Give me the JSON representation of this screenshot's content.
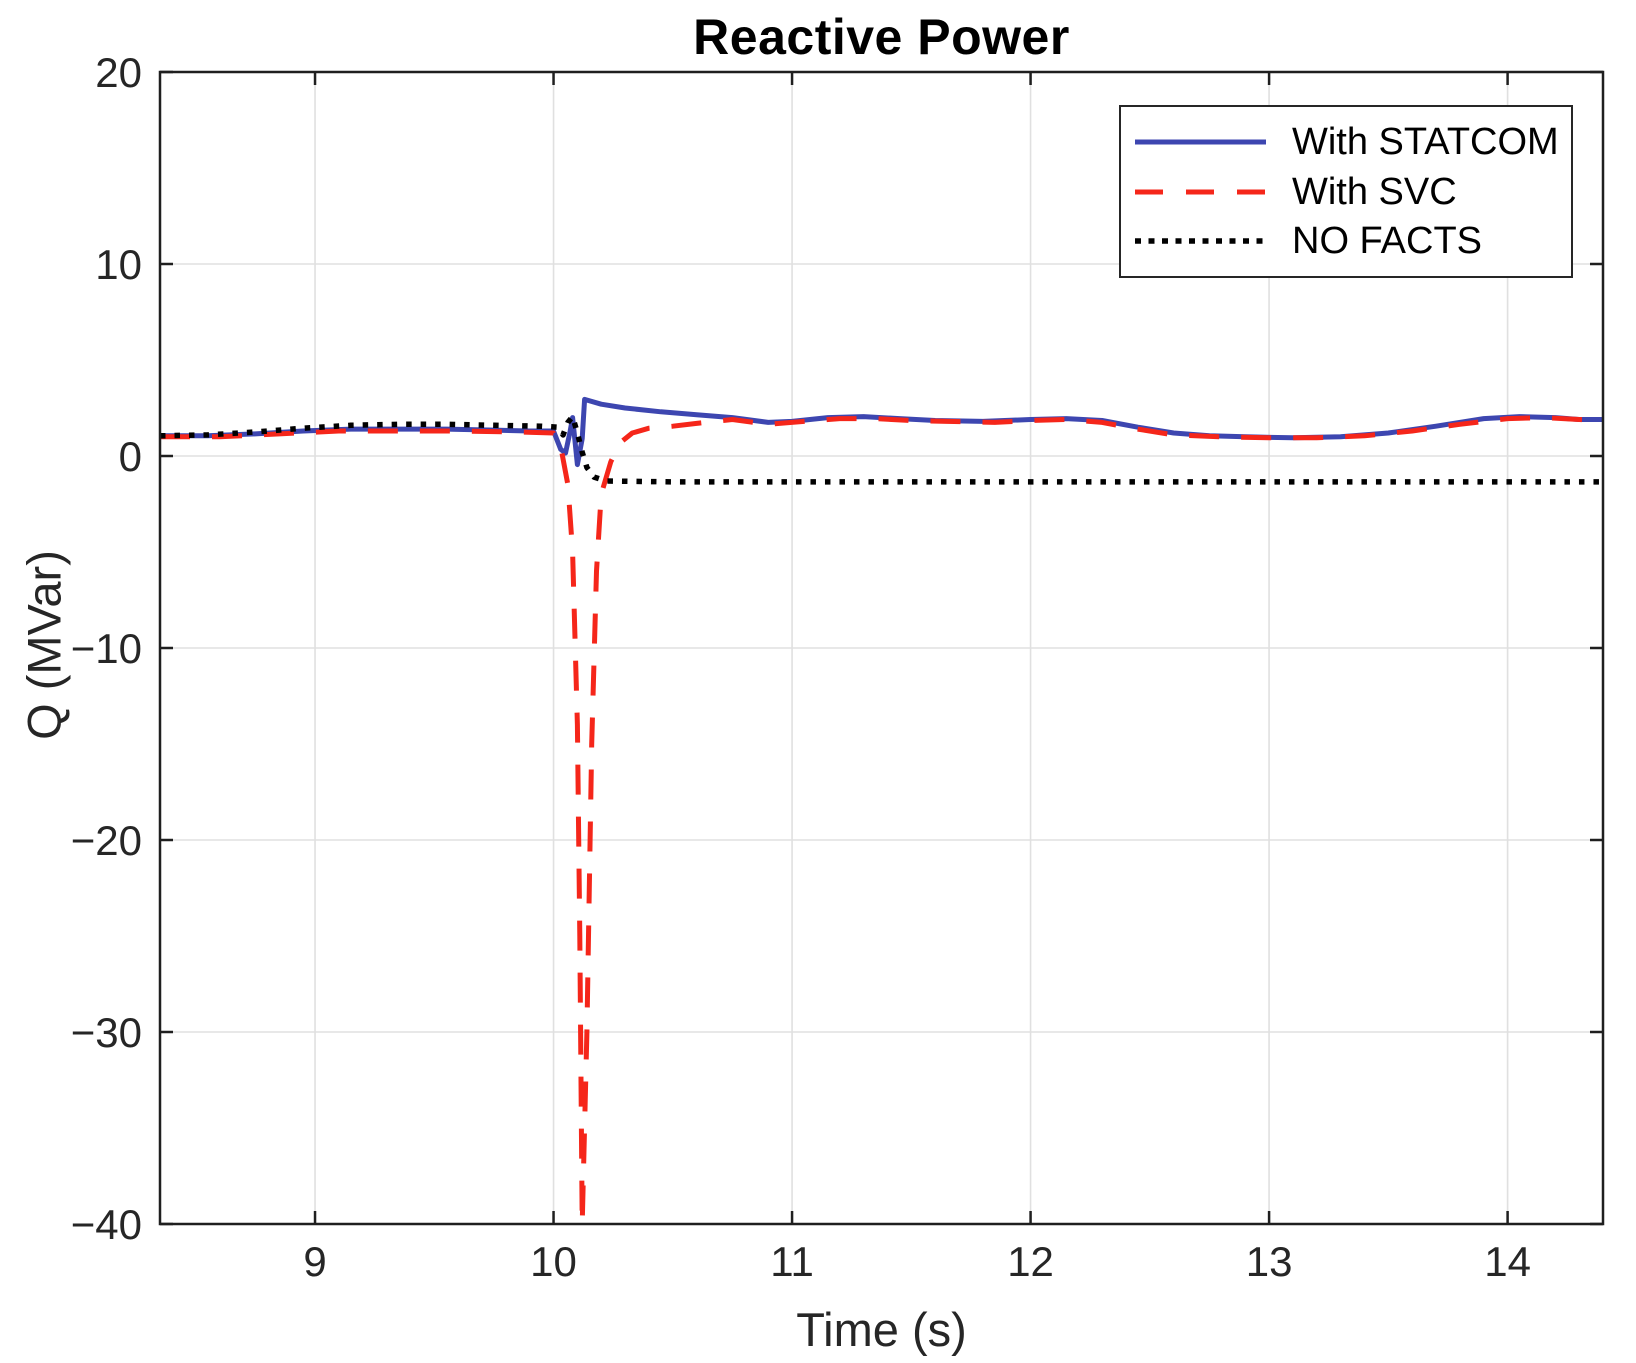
{
  "title": "Reactive Power",
  "colors": {
    "statcom_blue": "#3d46b0",
    "svc_red": "#f5261a",
    "no_facts_black": "#000000",
    "axis_frame": "#1f1f1f",
    "grid": "#e0e0e0",
    "tick_text": "#262626"
  },
  "legend": {
    "position": "top-right",
    "entries": [
      "With STATCOM",
      "With SVC",
      "NO FACTS"
    ]
  },
  "chart_data": {
    "type": "line",
    "title": "Reactive Power",
    "xlabel": "Time (s)",
    "ylabel": "Q (MVar)",
    "xlim": [
      8.35,
      14.4
    ],
    "ylim": [
      -40,
      20
    ],
    "xticks": [
      9,
      10,
      11,
      12,
      13,
      14
    ],
    "yticks": [
      20,
      10,
      0,
      -10,
      -20,
      -30,
      -40
    ],
    "grid": true,
    "legend_position": "top-right",
    "series": [
      {
        "name": "With STATCOM",
        "color": "#3d46b0",
        "style": "solid",
        "line_width": 5,
        "points": [
          [
            8.35,
            1.05
          ],
          [
            8.55,
            1.05
          ],
          [
            8.75,
            1.15
          ],
          [
            8.95,
            1.3
          ],
          [
            9.15,
            1.4
          ],
          [
            9.35,
            1.4
          ],
          [
            9.55,
            1.4
          ],
          [
            9.75,
            1.35
          ],
          [
            9.9,
            1.3
          ],
          [
            10.0,
            1.3
          ],
          [
            10.03,
            0.35
          ],
          [
            10.05,
            0.15
          ],
          [
            10.07,
            1.3
          ],
          [
            10.08,
            2.0
          ],
          [
            10.1,
            -0.45
          ],
          [
            10.12,
            0.9
          ],
          [
            10.13,
            2.95
          ],
          [
            10.2,
            2.7
          ],
          [
            10.3,
            2.5
          ],
          [
            10.45,
            2.3
          ],
          [
            10.6,
            2.15
          ],
          [
            10.75,
            2.0
          ],
          [
            10.9,
            1.75
          ],
          [
            11.0,
            1.8
          ],
          [
            11.15,
            2.0
          ],
          [
            11.3,
            2.05
          ],
          [
            11.45,
            1.95
          ],
          [
            11.6,
            1.85
          ],
          [
            11.8,
            1.8
          ],
          [
            12.0,
            1.9
          ],
          [
            12.15,
            1.95
          ],
          [
            12.3,
            1.85
          ],
          [
            12.45,
            1.5
          ],
          [
            12.6,
            1.2
          ],
          [
            12.75,
            1.05
          ],
          [
            12.9,
            1.0
          ],
          [
            13.1,
            0.95
          ],
          [
            13.3,
            1.0
          ],
          [
            13.5,
            1.2
          ],
          [
            13.7,
            1.55
          ],
          [
            13.9,
            1.95
          ],
          [
            14.05,
            2.05
          ],
          [
            14.2,
            2.0
          ],
          [
            14.3,
            1.9
          ],
          [
            14.4,
            1.9
          ]
        ]
      },
      {
        "name": "With SVC",
        "color": "#f5261a",
        "style": "dashed",
        "line_width": 5,
        "points": [
          [
            8.35,
            1.0
          ],
          [
            8.6,
            1.0
          ],
          [
            8.85,
            1.15
          ],
          [
            9.1,
            1.3
          ],
          [
            9.35,
            1.3
          ],
          [
            9.6,
            1.3
          ],
          [
            9.85,
            1.25
          ],
          [
            10.0,
            1.2
          ],
          [
            10.03,
            0.5
          ],
          [
            10.06,
            -1.5
          ],
          [
            10.08,
            -5.0
          ],
          [
            10.1,
            -14.0
          ],
          [
            10.11,
            -25.0
          ],
          [
            10.12,
            -40.0
          ],
          [
            10.14,
            -30.0
          ],
          [
            10.16,
            -15.0
          ],
          [
            10.18,
            -6.0
          ],
          [
            10.2,
            -2.0
          ],
          [
            10.24,
            -0.3
          ],
          [
            10.28,
            0.7
          ],
          [
            10.33,
            1.2
          ],
          [
            10.4,
            1.45
          ],
          [
            10.5,
            1.55
          ],
          [
            10.6,
            1.7
          ],
          [
            10.75,
            1.9
          ],
          [
            10.9,
            1.65
          ],
          [
            11.05,
            1.8
          ],
          [
            11.2,
            1.95
          ],
          [
            11.35,
            1.95
          ],
          [
            11.5,
            1.85
          ],
          [
            11.65,
            1.8
          ],
          [
            11.85,
            1.75
          ],
          [
            12.0,
            1.85
          ],
          [
            12.15,
            1.9
          ],
          [
            12.3,
            1.75
          ],
          [
            12.45,
            1.4
          ],
          [
            12.6,
            1.1
          ],
          [
            12.8,
            1.0
          ],
          [
            13.0,
            0.95
          ],
          [
            13.2,
            0.95
          ],
          [
            13.4,
            1.05
          ],
          [
            13.6,
            1.3
          ],
          [
            13.8,
            1.65
          ],
          [
            14.0,
            1.95
          ],
          [
            14.15,
            2.0
          ],
          [
            14.3,
            1.9
          ],
          [
            14.4,
            1.85
          ]
        ]
      },
      {
        "name": "NO FACTS",
        "color": "#000000",
        "style": "dotted",
        "line_width": 5.5,
        "points": [
          [
            8.35,
            1.05
          ],
          [
            8.55,
            1.1
          ],
          [
            8.75,
            1.25
          ],
          [
            8.95,
            1.45
          ],
          [
            9.15,
            1.6
          ],
          [
            9.35,
            1.65
          ],
          [
            9.55,
            1.65
          ],
          [
            9.75,
            1.6
          ],
          [
            9.95,
            1.55
          ],
          [
            10.02,
            1.5
          ],
          [
            10.04,
            1.1
          ],
          [
            10.06,
            1.75
          ],
          [
            10.08,
            2.05
          ],
          [
            10.1,
            1.2
          ],
          [
            10.12,
            0.2
          ],
          [
            10.14,
            -0.6
          ],
          [
            10.17,
            -1.1
          ],
          [
            10.22,
            -1.3
          ],
          [
            10.5,
            -1.35
          ],
          [
            11.0,
            -1.35
          ],
          [
            12.0,
            -1.35
          ],
          [
            13.0,
            -1.35
          ],
          [
            14.0,
            -1.35
          ],
          [
            14.4,
            -1.35
          ]
        ]
      }
    ]
  }
}
